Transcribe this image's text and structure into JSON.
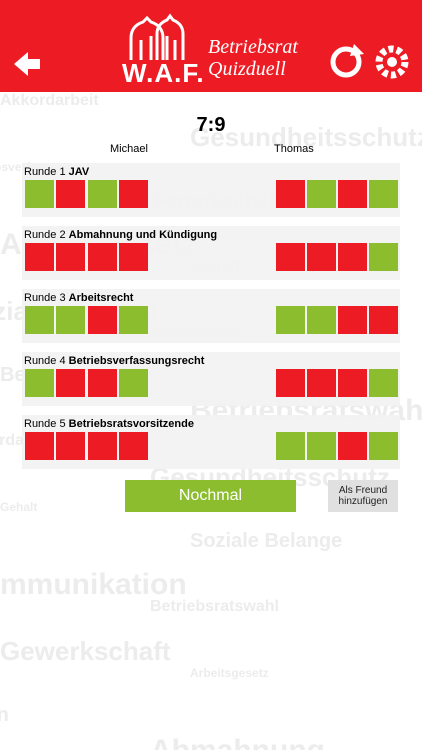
{
  "header": {
    "logo": "W.A.F.",
    "app_name_line1": "Betriebsrat",
    "app_name_line2": "Quizduell"
  },
  "score": "7:9",
  "players": [
    "Michael",
    "Thomas"
  ],
  "rounds": [
    {
      "label": "Runde 1",
      "topic": "JAV",
      "left": [
        true,
        false,
        true,
        false
      ],
      "right": [
        false,
        true,
        false,
        true
      ]
    },
    {
      "label": "Runde 2",
      "topic": "Abmahnung und Kündigung",
      "left": [
        false,
        false,
        false,
        false
      ],
      "right": [
        false,
        false,
        false,
        true
      ]
    },
    {
      "label": "Runde 3",
      "topic": "Arbeitsrecht",
      "left": [
        true,
        true,
        false,
        true
      ],
      "right": [
        true,
        true,
        false,
        false
      ]
    },
    {
      "label": "Runde 4",
      "topic": "Betriebsverfassungsrecht",
      "left": [
        true,
        false,
        false,
        true
      ],
      "right": [
        false,
        false,
        false,
        true
      ]
    },
    {
      "label": "Runde 5",
      "topic": "Betriebsratsvorsitzende",
      "left": [
        false,
        false,
        false,
        false
      ],
      "right": [
        true,
        true,
        false,
        true
      ]
    }
  ],
  "buttons": {
    "again": "Nochmal",
    "add_friend_line1": "Als Freund",
    "add_friend_line2": "hinzufügen"
  },
  "background_words": [
    "Akkordarbeit",
    "Gesundheitsschutz",
    "Betriebsverfassung",
    "Gewerkschaft",
    "Arbeitsgesetz",
    "Gehalt",
    "Soziale Belange",
    "Kommunikation",
    "Betriebsrat",
    "Betriebsratswahl",
    "Akkordarbeit",
    "Gesundheitsschutz",
    "Gehalt",
    "Soziale Belange",
    "Kommunikation",
    "Betriebsratswahl",
    "Gewerkschaft",
    "Arbeitsgesetz",
    "Lohn",
    "Abmahnung"
  ]
}
